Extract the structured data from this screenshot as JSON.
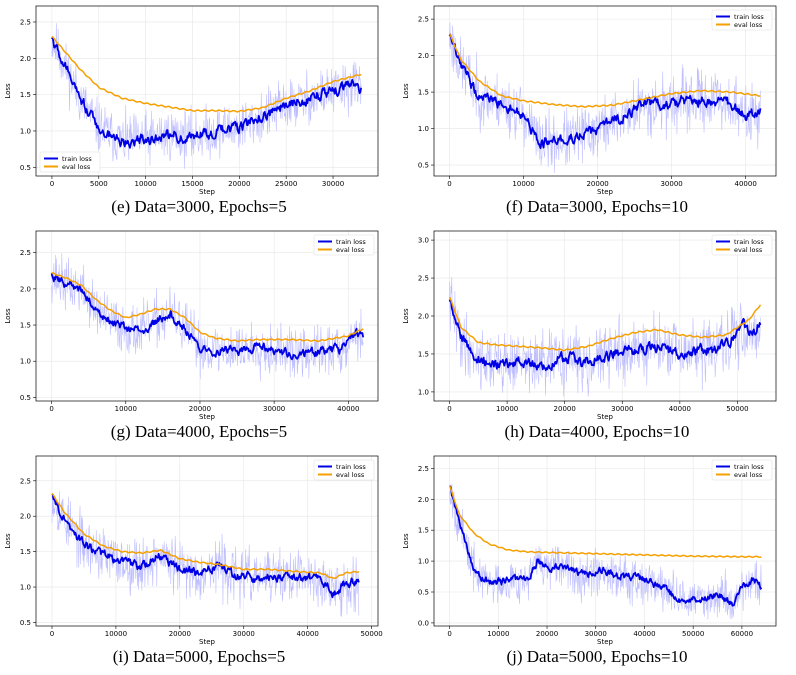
{
  "chart_data": [
    {
      "type": "line",
      "caption": "(e) Data=3000, Epochs=5",
      "xlabel": "Step",
      "ylabel": "Loss",
      "xlim": [
        -1700,
        34800
      ],
      "ylim": [
        0.38,
        2.72
      ],
      "xticks": [
        0,
        5000,
        10000,
        15000,
        20000,
        25000,
        30000
      ],
      "yticks": [
        0.5,
        1.0,
        1.5,
        2.0,
        2.5
      ],
      "legend": "lower-left",
      "series": [
        {
          "name": "train loss",
          "color": "#0000e6",
          "raw_color": "#b3b3ff",
          "noise": 0.25,
          "jitter": 0.06,
          "seed": 11,
          "x": [
            0,
            1000,
            3000,
            5000,
            7500,
            10000,
            12500,
            15000,
            17500,
            20000,
            22500,
            25000,
            27500,
            30000,
            32000,
            33000
          ],
          "y": [
            2.25,
            2.0,
            1.45,
            1.05,
            0.85,
            0.9,
            0.95,
            0.92,
            1.0,
            1.05,
            1.2,
            1.35,
            1.45,
            1.55,
            1.62,
            1.6
          ]
        },
        {
          "name": "eval loss",
          "color": "#f5a000",
          "x": [
            0,
            1000,
            3000,
            5000,
            7500,
            10000,
            12500,
            15000,
            17500,
            20000,
            22500,
            25000,
            27500,
            30000,
            33000
          ],
          "y": [
            2.3,
            2.15,
            1.85,
            1.6,
            1.45,
            1.38,
            1.33,
            1.28,
            1.28,
            1.27,
            1.32,
            1.45,
            1.55,
            1.68,
            1.78
          ]
        }
      ]
    },
    {
      "type": "line",
      "caption": "(f) Data=3000, Epochs=10",
      "xlabel": "Step",
      "ylabel": "Loss",
      "xlim": [
        -2100,
        44100
      ],
      "ylim": [
        0.35,
        2.68
      ],
      "xticks": [
        0,
        10000,
        20000,
        30000,
        40000
      ],
      "yticks": [
        0.5,
        1.0,
        1.5,
        2.0,
        2.5
      ],
      "legend": "top-right",
      "series": [
        {
          "name": "train loss",
          "color": "#0000e6",
          "raw_color": "#b3b3ff",
          "noise": 0.28,
          "jitter": 0.06,
          "seed": 23,
          "x": [
            0,
            1500,
            4000,
            7000,
            10000,
            12000,
            14000,
            17000,
            20000,
            23000,
            26000,
            30000,
            34000,
            38000,
            40000,
            42000
          ],
          "y": [
            2.25,
            1.85,
            1.45,
            1.35,
            1.2,
            0.82,
            0.8,
            0.88,
            0.98,
            1.15,
            1.3,
            1.35,
            1.4,
            1.35,
            1.15,
            1.25
          ]
        },
        {
          "name": "eval loss",
          "color": "#f5a000",
          "x": [
            0,
            1500,
            4000,
            7000,
            10000,
            14000,
            18000,
            22000,
            26000,
            30000,
            34000,
            38000,
            42000
          ],
          "y": [
            2.3,
            1.95,
            1.65,
            1.45,
            1.38,
            1.33,
            1.3,
            1.32,
            1.4,
            1.48,
            1.52,
            1.5,
            1.45
          ]
        }
      ]
    },
    {
      "type": "line",
      "caption": "(g) Data=4000, Epochs=5",
      "xlabel": "Step",
      "ylabel": "Loss",
      "xlim": [
        -2100,
        44000
      ],
      "ylim": [
        0.45,
        2.8
      ],
      "xticks": [
        0,
        10000,
        20000,
        30000,
        40000
      ],
      "yticks": [
        0.5,
        1.0,
        1.5,
        2.0,
        2.5
      ],
      "legend": "top-right",
      "series": [
        {
          "name": "train loss",
          "color": "#0000e6",
          "raw_color": "#b3b3ff",
          "noise": 0.25,
          "jitter": 0.05,
          "seed": 37,
          "x": [
            0,
            2000,
            4000,
            6000,
            8000,
            10000,
            12000,
            14000,
            16000,
            18000,
            20000,
            22000,
            25000,
            28000,
            30000,
            33000,
            36000,
            39000,
            41000,
            42000
          ],
          "y": [
            2.2,
            2.05,
            2.0,
            1.7,
            1.55,
            1.45,
            1.4,
            1.55,
            1.65,
            1.45,
            1.2,
            1.15,
            1.15,
            1.2,
            1.15,
            1.1,
            1.12,
            1.18,
            1.4,
            1.3
          ]
        },
        {
          "name": "eval loss",
          "color": "#f5a000",
          "x": [
            0,
            2000,
            4000,
            6000,
            8000,
            10000,
            12000,
            14000,
            16000,
            18000,
            20000,
            22000,
            25000,
            28000,
            32000,
            36000,
            40000,
            42000
          ],
          "y": [
            2.22,
            2.15,
            2.05,
            1.85,
            1.7,
            1.6,
            1.65,
            1.72,
            1.72,
            1.6,
            1.4,
            1.32,
            1.28,
            1.3,
            1.3,
            1.28,
            1.35,
            1.45
          ]
        }
      ]
    },
    {
      "type": "line",
      "caption": "(h) Data=4000, Epochs=10",
      "xlabel": "Step",
      "ylabel": "Loss",
      "xlim": [
        -2700,
        56700
      ],
      "ylim": [
        0.88,
        3.12
      ],
      "xticks": [
        0,
        10000,
        20000,
        30000,
        40000,
        50000
      ],
      "yticks": [
        1.0,
        1.5,
        2.0,
        2.5,
        3.0
      ],
      "legend": "top-right",
      "series": [
        {
          "name": "train loss",
          "color": "#0000e6",
          "raw_color": "#b3b3ff",
          "noise": 0.28,
          "jitter": 0.06,
          "seed": 41,
          "x": [
            0,
            2000,
            5000,
            8000,
            12000,
            16000,
            20000,
            24000,
            28000,
            32000,
            36000,
            40000,
            44000,
            48000,
            51000,
            53000,
            54000
          ],
          "y": [
            2.2,
            1.7,
            1.45,
            1.38,
            1.4,
            1.35,
            1.45,
            1.4,
            1.5,
            1.55,
            1.6,
            1.5,
            1.55,
            1.6,
            1.85,
            1.75,
            1.95
          ]
        },
        {
          "name": "eval loss",
          "color": "#f5a000",
          "x": [
            0,
            2000,
            5000,
            8000,
            12000,
            16000,
            20000,
            24000,
            28000,
            32000,
            36000,
            40000,
            44000,
            48000,
            52000,
            54000
          ],
          "y": [
            2.25,
            1.85,
            1.65,
            1.62,
            1.6,
            1.58,
            1.55,
            1.6,
            1.7,
            1.78,
            1.82,
            1.75,
            1.72,
            1.75,
            1.95,
            2.15
          ]
        }
      ]
    },
    {
      "type": "line",
      "caption": "(i) Data=5000, Epochs=5",
      "xlabel": "Step",
      "ylabel": "Loss",
      "xlim": [
        -2500,
        51000
      ],
      "ylim": [
        0.45,
        2.85
      ],
      "xticks": [
        0,
        10000,
        20000,
        30000,
        40000,
        50000
      ],
      "yticks": [
        0.5,
        1.0,
        1.5,
        2.0,
        2.5
      ],
      "legend": "top-right",
      "series": [
        {
          "name": "train loss",
          "color": "#0000e6",
          "raw_color": "#b3b3ff",
          "noise": 0.27,
          "jitter": 0.05,
          "seed": 53,
          "x": [
            0,
            2000,
            5000,
            8000,
            11000,
            14000,
            17000,
            20000,
            23000,
            26000,
            29000,
            32000,
            35000,
            38000,
            41000,
            43000,
            44000,
            46000,
            48000
          ],
          "y": [
            2.3,
            1.95,
            1.6,
            1.45,
            1.35,
            1.3,
            1.45,
            1.25,
            1.2,
            1.3,
            1.15,
            1.12,
            1.15,
            1.15,
            1.12,
            1.05,
            0.92,
            1.05,
            1.1
          ]
        },
        {
          "name": "eval loss",
          "color": "#f5a000",
          "x": [
            0,
            2000,
            5000,
            8000,
            11000,
            14000,
            17000,
            20000,
            23000,
            26000,
            30000,
            34000,
            38000,
            42000,
            44000,
            46000,
            48000
          ],
          "y": [
            2.32,
            2.05,
            1.75,
            1.58,
            1.5,
            1.48,
            1.52,
            1.4,
            1.35,
            1.32,
            1.25,
            1.25,
            1.22,
            1.2,
            1.12,
            1.2,
            1.22
          ]
        }
      ]
    },
    {
      "type": "line",
      "caption": "(j) Data=5000, Epochs=10",
      "xlabel": "Step",
      "ylabel": "Loss",
      "xlim": [
        -3200,
        67000
      ],
      "ylim": [
        -0.05,
        2.7
      ],
      "xticks": [
        0,
        10000,
        20000,
        30000,
        40000,
        50000,
        60000
      ],
      "yticks": [
        0.0,
        0.5,
        1.0,
        1.5,
        2.0,
        2.5
      ],
      "legend": "top-right",
      "series": [
        {
          "name": "train loss",
          "color": "#0000e6",
          "raw_color": "#b3b3ff",
          "noise": 0.25,
          "jitter": 0.05,
          "seed": 67,
          "x": [
            0,
            2000,
            5000,
            8000,
            12000,
            16000,
            18000,
            20000,
            24000,
            28000,
            32000,
            36000,
            40000,
            44000,
            48000,
            52000,
            56000,
            58000,
            60000,
            62000,
            64000
          ],
          "y": [
            2.2,
            1.6,
            0.85,
            0.65,
            0.68,
            0.7,
            1.0,
            0.9,
            0.85,
            0.8,
            0.85,
            0.75,
            0.7,
            0.55,
            0.35,
            0.4,
            0.45,
            0.3,
            0.55,
            0.7,
            0.6
          ]
        },
        {
          "name": "eval loss",
          "color": "#f5a000",
          "x": [
            0,
            2000,
            5000,
            8000,
            12000,
            16000,
            20000,
            30000,
            40000,
            50000,
            60000,
            64000
          ],
          "y": [
            2.22,
            1.75,
            1.45,
            1.28,
            1.18,
            1.15,
            1.14,
            1.12,
            1.1,
            1.08,
            1.07,
            1.07
          ]
        }
      ]
    }
  ]
}
